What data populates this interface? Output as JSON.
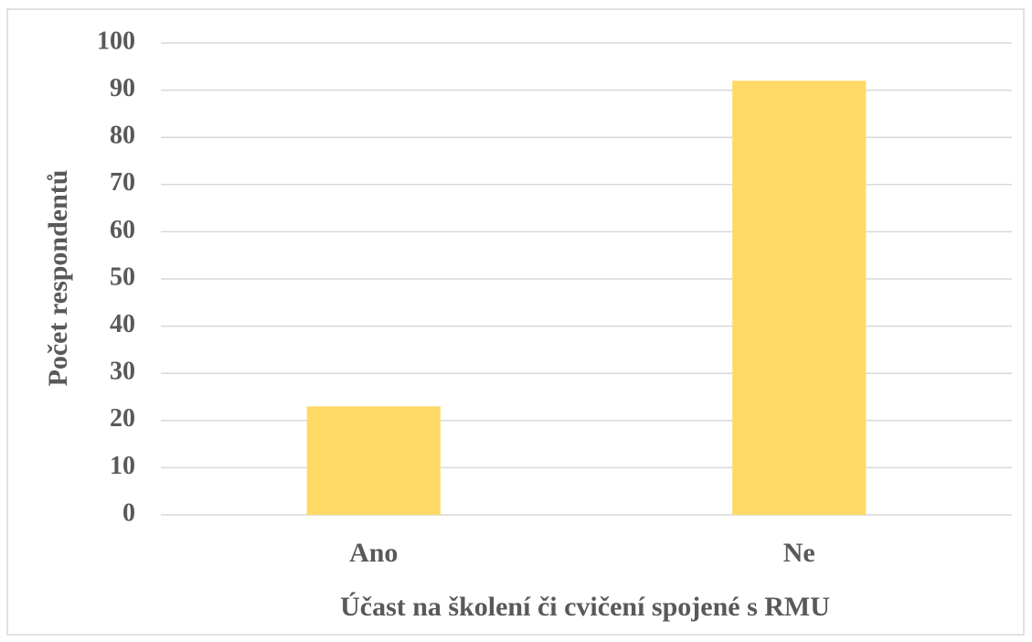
{
  "chart_data": {
    "type": "bar",
    "categories": [
      "Ano",
      "Ne"
    ],
    "values": [
      23,
      92
    ],
    "color": "#ffd966",
    "ylim": [
      0,
      100
    ],
    "yticks": [
      0,
      10,
      20,
      30,
      40,
      50,
      60,
      70,
      80,
      90,
      100
    ],
    "grid": true,
    "xlabel": "Účast na školení či cvičení spojené s RMU",
    "ylabel": "Počet respondentů"
  }
}
